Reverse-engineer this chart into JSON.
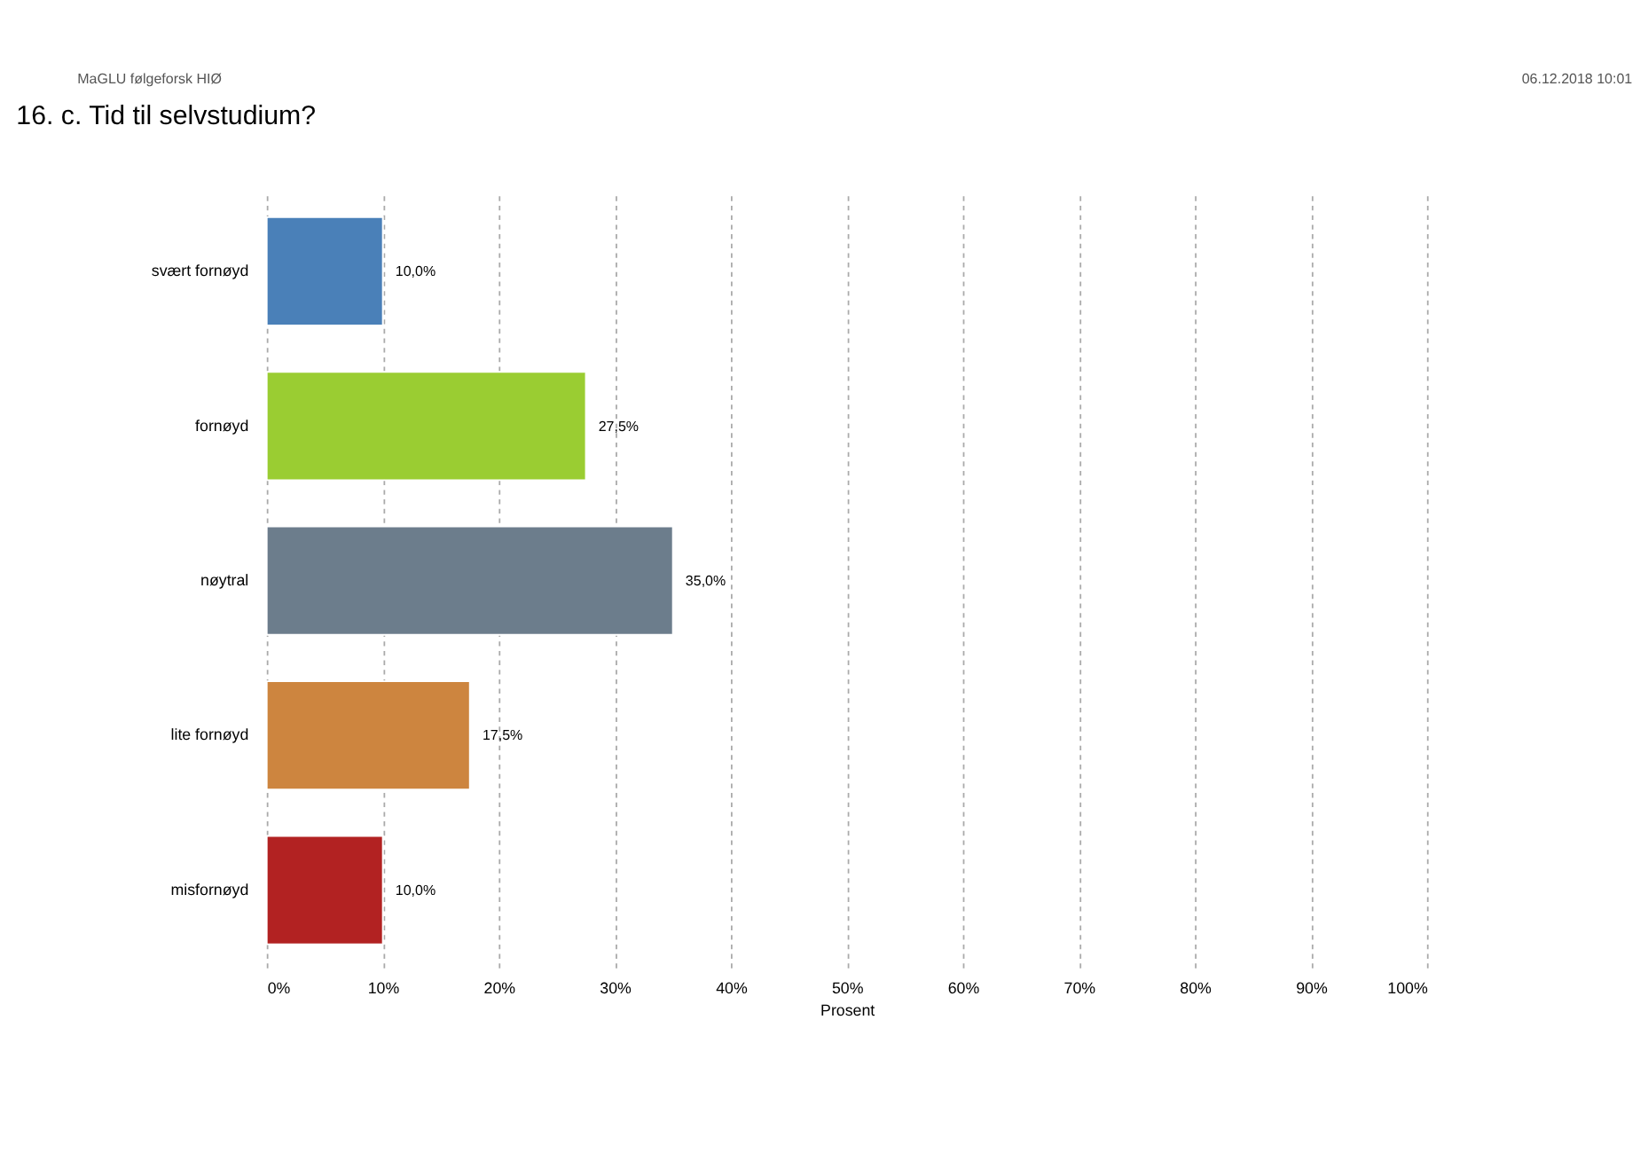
{
  "chart_data": {
    "type": "bar",
    "orientation": "horizontal",
    "title": "16. c.      Tid til selvstudium?",
    "xlabel": "Prosent",
    "categories": [
      "svært fornøyd",
      "fornøyd",
      "nøytral",
      "lite fornøyd",
      "misfornøyd"
    ],
    "values": [
      10.0,
      27.5,
      35.0,
      17.5,
      10.0
    ],
    "colors": [
      "#4a80b8",
      "#9acd32",
      "#6c7d8c",
      "#cd853f",
      "#b22222"
    ],
    "value_labels": [
      "10,0%",
      "27,5%",
      "35,0%",
      "17,5%",
      "10,0%"
    ],
    "xlim": [
      0,
      100
    ],
    "xticks": [
      {
        "value": 0,
        "label": "0%"
      },
      {
        "value": 10,
        "label": "10%"
      },
      {
        "value": 20,
        "label": "20%"
      },
      {
        "value": 30,
        "label": "30%"
      },
      {
        "value": 40,
        "label": "40%"
      },
      {
        "value": 50,
        "label": "50%"
      },
      {
        "value": 60,
        "label": "60%"
      },
      {
        "value": 70,
        "label": "70%"
      },
      {
        "value": 80,
        "label": "80%"
      },
      {
        "value": 90,
        "label": "90%"
      },
      {
        "value": 100,
        "label": "100%"
      }
    ],
    "grid": "x",
    "annotations": [
      "MaGLU følgeforsk HIØ",
      "06.12.2018 10:01"
    ]
  }
}
